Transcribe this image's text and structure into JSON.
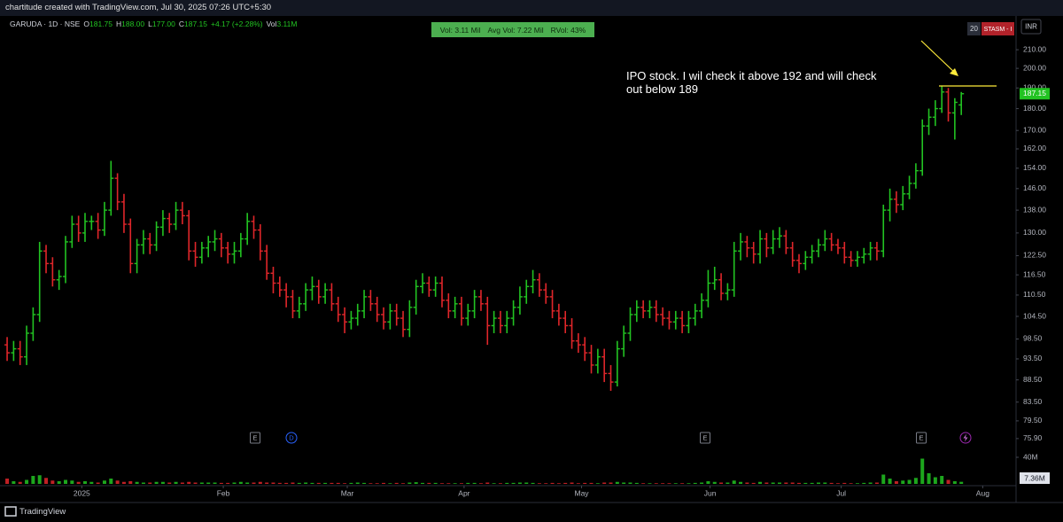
{
  "chart_data": {
    "type": "ohlc",
    "watermark": "chartitude created with TradingView.com, Jul 30, 2025 07:26 UTC+5:30",
    "header": {
      "symbol": "GARUDA · 1D · NSE",
      "fields": [
        {
          "key": "O",
          "value": "181.75"
        },
        {
          "key": "H",
          "value": "188.00"
        },
        {
          "key": "L",
          "value": "177.00"
        },
        {
          "key": "C",
          "value": "187.15"
        }
      ],
      "change": "+4.17 (+2.28%)",
      "vol_key": "Vol",
      "vol_value": "3.11M"
    },
    "status": [
      "Vol: 3.11 Mil",
      "Avg Vol: 7.22 Mil",
      "RVol: 43%"
    ],
    "badges": [
      "20",
      "STASM - I"
    ],
    "currency": "INR",
    "annotation": "IPO stock. I wil check it above 192 and will check out below 189",
    "annotation_line": {
      "value": 191,
      "color": "#ffeb3b"
    },
    "events": [
      "E",
      "D",
      "E",
      "E"
    ],
    "footer": "TradingView",
    "log_scale": true,
    "grid": false,
    "up_color": "#22c322",
    "down_color": "#e0262a",
    "ylim": [
      67.1,
      229.4
    ],
    "yticks": [
      {
        "value": 210,
        "label": "210.00"
      },
      {
        "value": 200,
        "label": "200.00"
      },
      {
        "value": 190,
        "label": "190.00"
      },
      {
        "value": 180,
        "label": "180.00"
      },
      {
        "value": 170,
        "label": "170.00"
      },
      {
        "value": 162,
        "label": "162.00"
      },
      {
        "value": 154,
        "label": "154.00"
      },
      {
        "value": 146,
        "label": "146.00"
      },
      {
        "value": 138,
        "label": "138.00"
      },
      {
        "value": 130,
        "label": "130.00"
      },
      {
        "value": 122.5,
        "label": "122.50"
      },
      {
        "value": 116.5,
        "label": "116.50"
      },
      {
        "value": 110.5,
        "label": "110.50"
      },
      {
        "value": 104.5,
        "label": "104.50"
      },
      {
        "value": 98.5,
        "label": "98.50"
      },
      {
        "value": 93.5,
        "label": "93.50"
      },
      {
        "value": 88.5,
        "label": "88.50"
      },
      {
        "value": 83.5,
        "label": "83.50"
      },
      {
        "value": 79.5,
        "label": "79.50"
      },
      {
        "value": 75.9,
        "label": "75.90"
      }
    ],
    "xlim": [
      -1.1,
      155.3
    ],
    "xticks": [
      {
        "value": 11.5,
        "label": "2025"
      },
      {
        "value": 33.3,
        "label": "Feb"
      },
      {
        "value": 52.4,
        "label": "Mar"
      },
      {
        "value": 70.4,
        "label": "Apr"
      },
      {
        "value": 88.5,
        "label": "May"
      },
      {
        "value": 108.3,
        "label": "Jun"
      },
      {
        "value": 128.5,
        "label": "Jul"
      },
      {
        "value": 150.3,
        "label": "Aug"
      }
    ],
    "open": [
      97,
      95,
      96,
      94,
      100,
      105,
      124,
      120,
      115,
      116,
      127,
      133,
      130,
      134,
      134,
      131,
      138,
      150,
      141,
      133,
      120,
      126,
      128,
      126,
      132,
      135,
      133,
      138,
      136,
      124,
      122,
      125,
      127,
      128,
      125,
      123,
      124,
      128,
      134,
      131,
      124,
      117,
      114,
      112,
      110,
      106,
      108,
      112,
      113,
      110,
      112,
      108,
      105,
      103,
      104,
      106,
      110,
      108,
      105,
      103,
      106,
      104,
      101,
      107,
      113,
      114,
      112,
      114,
      109,
      106,
      108,
      104,
      106,
      110,
      108,
      102,
      104,
      102,
      104,
      107,
      110,
      113,
      115,
      112,
      110,
      106,
      104,
      102,
      98,
      97,
      95,
      92,
      94,
      90,
      88,
      96,
      100,
      105,
      107,
      106,
      107,
      105,
      104,
      103,
      104,
      102,
      104,
      106,
      109,
      114,
      115,
      111,
      112,
      124,
      127,
      125,
      123,
      128,
      125,
      128,
      129,
      125,
      121,
      120,
      122,
      124,
      126,
      128,
      126,
      125,
      122,
      121,
      122,
      123,
      125,
      124,
      138,
      142,
      140,
      144,
      148,
      153,
      172,
      176,
      180,
      188,
      178,
      181.75
    ],
    "high": [
      99,
      98,
      98,
      102,
      107,
      127,
      126,
      122,
      118,
      129,
      136,
      136,
      137,
      136,
      137,
      141,
      157,
      152,
      144,
      135,
      128,
      131,
      130,
      134,
      138,
      137,
      141,
      141,
      138,
      127,
      127,
      129,
      131,
      130,
      127,
      127,
      130,
      137,
      136,
      133,
      126,
      119,
      116,
      114,
      112,
      110,
      114,
      116,
      115,
      114,
      114,
      110,
      107,
      106,
      108,
      112,
      112,
      110,
      107,
      108,
      108,
      106,
      109,
      115,
      117,
      116,
      116,
      116,
      111,
      110,
      110,
      108,
      112,
      112,
      110,
      106,
      106,
      106,
      109,
      113,
      115,
      118,
      117,
      114,
      112,
      108,
      106,
      104,
      100,
      99,
      97,
      96,
      96,
      92,
      98,
      102,
      107,
      109,
      109,
      109,
      109,
      107,
      106,
      106,
      106,
      106,
      108,
      111,
      118,
      119,
      117,
      114,
      127,
      130,
      129,
      127,
      131,
      130,
      131,
      132,
      131,
      127,
      123,
      124,
      126,
      128,
      131,
      130,
      128,
      127,
      124,
      124,
      125,
      127,
      127,
      140,
      146,
      145,
      147,
      151,
      156,
      175,
      180,
      184,
      191,
      190,
      185,
      188
    ],
    "low": [
      93,
      93,
      92,
      92,
      98,
      103,
      117,
      113,
      112,
      114,
      125,
      127,
      127,
      131,
      128,
      129,
      136,
      138,
      130,
      117,
      117,
      123,
      123,
      124,
      129,
      130,
      131,
      133,
      121,
      119,
      120,
      122,
      124,
      122,
      120,
      120,
      122,
      126,
      128,
      121,
      115,
      111,
      110,
      107,
      104,
      104,
      106,
      109,
      108,
      108,
      106,
      103,
      100,
      101,
      102,
      104,
      106,
      103,
      101,
      101,
      102,
      99,
      99,
      105,
      111,
      110,
      110,
      107,
      104,
      104,
      102,
      102,
      104,
      106,
      97,
      100,
      100,
      100,
      102,
      105,
      108,
      111,
      110,
      108,
      104,
      102,
      100,
      96,
      95,
      93,
      90,
      90,
      88,
      86,
      87,
      94,
      98,
      103,
      104,
      104,
      103,
      102,
      101,
      101,
      100,
      100,
      102,
      104,
      107,
      112,
      109,
      109,
      110,
      121,
      122,
      120,
      120,
      122,
      123,
      125,
      123,
      119,
      117,
      118,
      120,
      122,
      124,
      124,
      123,
      120,
      119,
      119,
      120,
      121,
      121,
      122,
      134,
      137,
      138,
      142,
      146,
      151,
      168,
      172,
      178,
      174,
      166,
      177
    ],
    "close": [
      95,
      96,
      94,
      100,
      105,
      124,
      120,
      115,
      116,
      127,
      133,
      130,
      134,
      134,
      131,
      138,
      150,
      141,
      133,
      120,
      126,
      128,
      126,
      132,
      135,
      133,
      138,
      136,
      124,
      122,
      125,
      127,
      128,
      125,
      123,
      124,
      128,
      134,
      131,
      124,
      117,
      114,
      112,
      110,
      106,
      108,
      112,
      113,
      110,
      112,
      108,
      105,
      103,
      104,
      106,
      110,
      108,
      105,
      103,
      106,
      104,
      101,
      107,
      113,
      114,
      112,
      114,
      109,
      106,
      108,
      104,
      106,
      110,
      108,
      102,
      104,
      102,
      104,
      107,
      110,
      113,
      115,
      112,
      110,
      106,
      104,
      102,
      98,
      97,
      95,
      92,
      94,
      90,
      88,
      96,
      100,
      105,
      107,
      106,
      107,
      105,
      104,
      103,
      104,
      102,
      104,
      106,
      109,
      114,
      115,
      111,
      112,
      124,
      127,
      125,
      123,
      128,
      125,
      128,
      129,
      125,
      121,
      120,
      122,
      124,
      126,
      128,
      126,
      125,
      122,
      121,
      122,
      123,
      125,
      124,
      138,
      142,
      140,
      144,
      148,
      153,
      172,
      176,
      180,
      188,
      178,
      182.98,
      187.15
    ],
    "volume": [
      8,
      4,
      3,
      6,
      12,
      13,
      9,
      5,
      4,
      6,
      5,
      3,
      4,
      3,
      2,
      5,
      8,
      5,
      3,
      4,
      3,
      2,
      2,
      3,
      3,
      2,
      3,
      2,
      3,
      2,
      2,
      2,
      2,
      1.5,
      1.5,
      2,
      3,
      2,
      2,
      3,
      2,
      2,
      1.5,
      1.5,
      2,
      1.5,
      2,
      1.5,
      1.5,
      1.5,
      1.5,
      1.5,
      1,
      1.5,
      2,
      1.5,
      1,
      1,
      1.5,
      1,
      1.5,
      1,
      2,
      2.5,
      1.5,
      1.5,
      1.5,
      1,
      1,
      1,
      1,
      1.5,
      1.5,
      1,
      2,
      1,
      1,
      1.5,
      1.5,
      2,
      2,
      1.5,
      1,
      1,
      1.5,
      1,
      1.5,
      2,
      1,
      1.5,
      1.5,
      1,
      2,
      2,
      3,
      2,
      2,
      1.5,
      1,
      1,
      1,
      1,
      1,
      1,
      1,
      1,
      1.5,
      2,
      4,
      3,
      2,
      2,
      5,
      3,
      2,
      1.5,
      3,
      2,
      2,
      2,
      2,
      2,
      1.5,
      1.5,
      1.5,
      2,
      2,
      1.5,
      1,
      1.5,
      1,
      1,
      1.5,
      2,
      2,
      14,
      8,
      4,
      5,
      6,
      9,
      38,
      16,
      10,
      12,
      6,
      4,
      3.11
    ],
    "volume_ylim": [
      0,
      72
    ],
    "volume_yticks": [
      {
        "value": 40,
        "label": "40M"
      }
    ],
    "volume_tag": "7.36M"
  }
}
